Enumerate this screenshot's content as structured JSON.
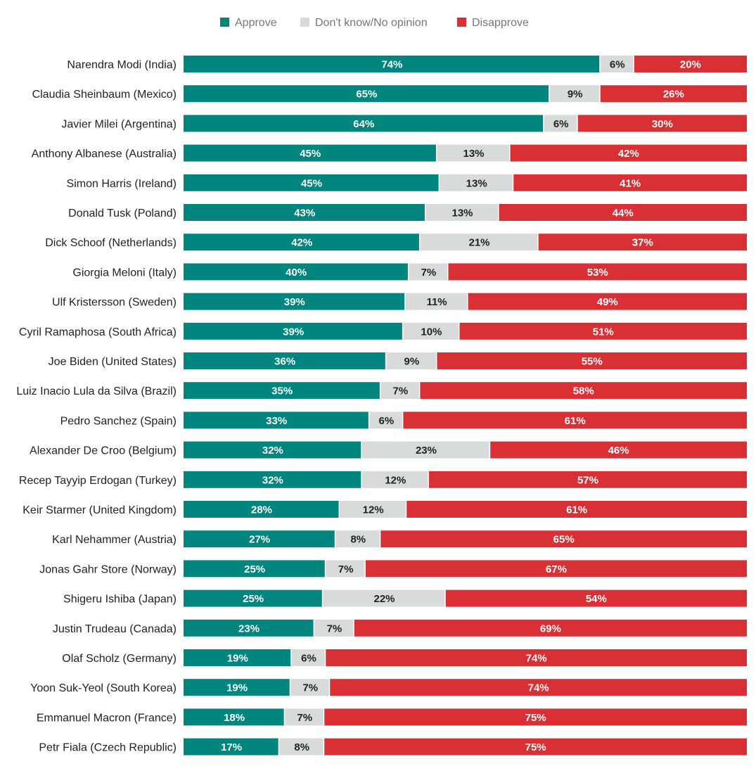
{
  "colors": {
    "approve": "#00857f",
    "neutral": "#d9dbdb",
    "disapprove": "#d93036",
    "approve_text": "#ffffff",
    "neutral_text": "#222222",
    "disapprove_text": "#ffffff"
  },
  "chart_data": {
    "type": "bar",
    "orientation": "horizontal",
    "stacked": true,
    "percent_suffix": "%",
    "legend_position": "top",
    "legend": [
      "Approve",
      "Don't know/No opinion",
      "Disapprove"
    ],
    "categories": [
      "Narendra Modi (India)",
      "Claudia Sheinbaum (Mexico)",
      "Javier Milei (Argentina)",
      "Anthony Albanese (Australia)",
      "Simon Harris (Ireland)",
      "Donald Tusk (Poland)",
      "Dick Schoof (Netherlands)",
      "Giorgia Meloni (Italy)",
      "Ulf Kristersson (Sweden)",
      "Cyril Ramaphosa (South Africa)",
      "Joe Biden (United States)",
      "Luiz Inacio Lula da Silva (Brazil)",
      "Pedro Sanchez (Spain)",
      "Alexander De Croo (Belgium)",
      "Recep Tayyip Erdogan (Turkey)",
      "Keir Starmer (United Kingdom)",
      "Karl Nehammer (Austria)",
      "Jonas Gahr Store (Norway)",
      "Shigeru Ishiba (Japan)",
      "Justin Trudeau (Canada)",
      "Olaf Scholz (Germany)",
      "Yoon Suk-Yeol (South Korea)",
      "Emmanuel Macron (France)",
      "Petr Fiala (Czech Republic)"
    ],
    "series": [
      {
        "name": "Approve",
        "values": [
          74,
          65,
          64,
          45,
          45,
          43,
          42,
          40,
          39,
          39,
          36,
          35,
          33,
          32,
          32,
          28,
          27,
          25,
          25,
          23,
          19,
          19,
          18,
          17
        ]
      },
      {
        "name": "Don't know/No opinion",
        "values": [
          6,
          9,
          6,
          13,
          13,
          13,
          21,
          7,
          11,
          10,
          9,
          7,
          6,
          23,
          12,
          12,
          8,
          7,
          22,
          7,
          6,
          7,
          7,
          8
        ]
      },
      {
        "name": "Disapprove",
        "values": [
          20,
          26,
          30,
          42,
          41,
          44,
          37,
          53,
          49,
          51,
          55,
          58,
          61,
          46,
          57,
          61,
          65,
          67,
          54,
          69,
          74,
          74,
          75,
          75
        ]
      }
    ],
    "xlim": [
      0,
      100
    ]
  }
}
